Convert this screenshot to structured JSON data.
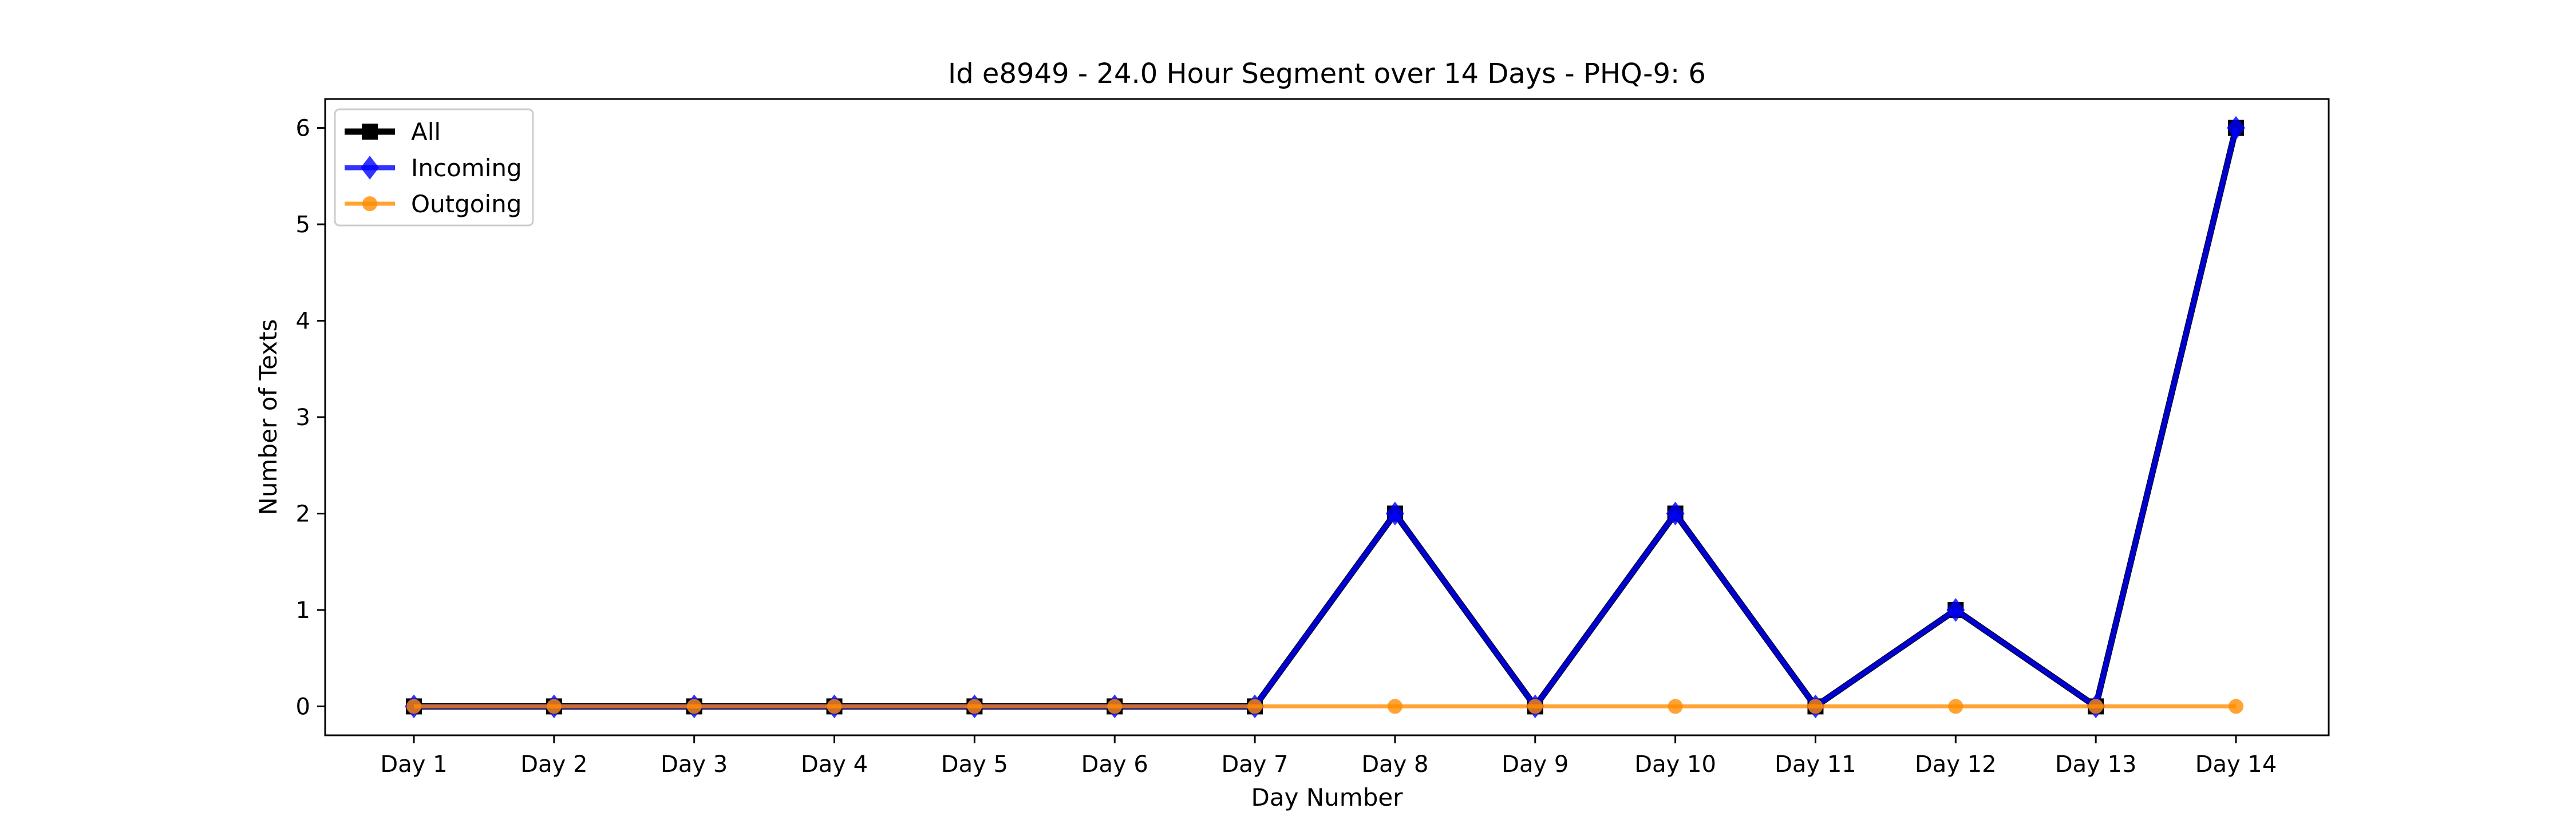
{
  "chart_data": {
    "type": "line",
    "title": "Id e8949 - 24.0 Hour Segment over 14 Days - PHQ-9: 6",
    "xlabel": "Day Number",
    "ylabel": "Number of Texts",
    "categories": [
      "Day 1",
      "Day 2",
      "Day 3",
      "Day 4",
      "Day 5",
      "Day 6",
      "Day 7",
      "Day 8",
      "Day 9",
      "Day 10",
      "Day 11",
      "Day 12",
      "Day 13",
      "Day 14"
    ],
    "ylim": [
      -0.3,
      6.3
    ],
    "yticks": [
      0,
      1,
      2,
      3,
      4,
      5,
      6
    ],
    "grid": false,
    "legend_position": "top-left",
    "series": [
      {
        "name": "All",
        "color": "#000000",
        "marker": "square",
        "values": [
          0,
          0,
          0,
          0,
          0,
          0,
          0,
          2,
          0,
          2,
          0,
          1,
          0,
          6
        ]
      },
      {
        "name": "Incoming",
        "color": "#0000ff",
        "marker": "diamond",
        "values": [
          0,
          0,
          0,
          0,
          0,
          0,
          0,
          2,
          0,
          2,
          0,
          1,
          0,
          6
        ]
      },
      {
        "name": "Outgoing",
        "color": "#ff8c00",
        "marker": "circle",
        "values": [
          0,
          0,
          0,
          0,
          0,
          0,
          0,
          0,
          0,
          0,
          0,
          0,
          0,
          0
        ]
      }
    ]
  }
}
